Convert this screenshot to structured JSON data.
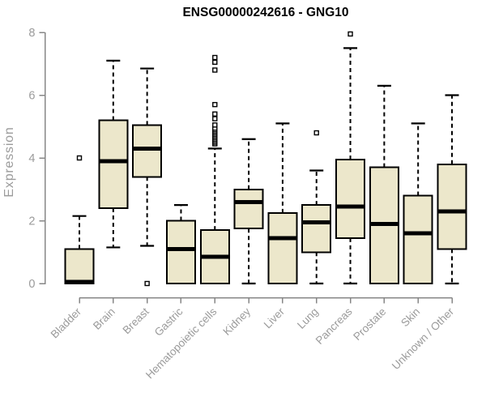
{
  "chart_data": {
    "type": "boxplot",
    "title": "ENSG00000242616 - GNG10",
    "ylabel": "Expression",
    "xlabel": "",
    "ylim": [
      0,
      8
    ],
    "yticks": [
      0,
      2,
      4,
      6,
      8
    ],
    "grid": false,
    "legend": "none",
    "categories": [
      "Bladder",
      "Brain",
      "Breast",
      "Gastric",
      "Hematopoietic cells",
      "Kidney",
      "Liver",
      "Lung",
      "Pancreas",
      "Prostate",
      "Skin",
      "Unknown / Other"
    ],
    "series": [
      {
        "category": "Bladder",
        "whisker_low": 0,
        "q1": 0,
        "median": 0.05,
        "q3": 1.1,
        "whisker_high": 2.15,
        "outliers": [
          4.0
        ]
      },
      {
        "category": "Brain",
        "whisker_low": 1.15,
        "q1": 2.4,
        "median": 3.9,
        "q3": 5.2,
        "whisker_high": 7.1,
        "outliers": []
      },
      {
        "category": "Breast",
        "whisker_low": 1.2,
        "q1": 3.4,
        "median": 4.3,
        "q3": 5.05,
        "whisker_high": 6.85,
        "outliers": [
          0
        ]
      },
      {
        "category": "Gastric",
        "whisker_low": 0,
        "q1": 0,
        "median": 1.1,
        "q3": 2.0,
        "whisker_high": 2.5,
        "outliers": []
      },
      {
        "category": "Hematopoietic cells",
        "whisker_low": 0,
        "q1": 0,
        "median": 0.85,
        "q3": 1.7,
        "whisker_high": 4.3,
        "outliers": [
          4.45,
          4.5,
          4.55,
          4.6,
          4.65,
          4.7,
          4.75,
          4.8,
          4.85,
          4.9,
          4.95,
          5.05,
          5.25,
          5.4,
          5.7,
          6.8,
          7.05,
          7.2
        ]
      },
      {
        "category": "Kidney",
        "whisker_low": 0,
        "q1": 1.75,
        "median": 2.6,
        "q3": 3.0,
        "whisker_high": 4.6,
        "outliers": []
      },
      {
        "category": "Liver",
        "whisker_low": 0,
        "q1": 0,
        "median": 1.45,
        "q3": 2.25,
        "whisker_high": 5.1,
        "outliers": []
      },
      {
        "category": "Lung",
        "whisker_low": 0,
        "q1": 1.0,
        "median": 1.95,
        "q3": 2.5,
        "whisker_high": 3.6,
        "outliers": [
          4.8
        ]
      },
      {
        "category": "Pancreas",
        "whisker_low": 0,
        "q1": 1.45,
        "median": 2.45,
        "q3": 3.95,
        "whisker_high": 7.5,
        "outliers": [
          7.95
        ]
      },
      {
        "category": "Prostate",
        "whisker_low": 0,
        "q1": 0,
        "median": 1.9,
        "q3": 3.7,
        "whisker_high": 6.3,
        "outliers": []
      },
      {
        "category": "Skin",
        "whisker_low": 0,
        "q1": 0,
        "median": 1.6,
        "q3": 2.8,
        "whisker_high": 5.1,
        "outliers": []
      },
      {
        "category": "Unknown / Other",
        "whisker_low": 0,
        "q1": 1.1,
        "median": 2.3,
        "q3": 3.8,
        "whisker_high": 6.0,
        "outliers": []
      }
    ],
    "colors": {
      "box_fill": "#ece7cb",
      "box_border": "#000000",
      "median": "#000000",
      "whisker": "#000000",
      "outlier_fill": "#ffffff",
      "axis_line": "#878787",
      "label_text": "#9b9b9b",
      "title_text": "#000000",
      "background": "#ffffff"
    }
  }
}
